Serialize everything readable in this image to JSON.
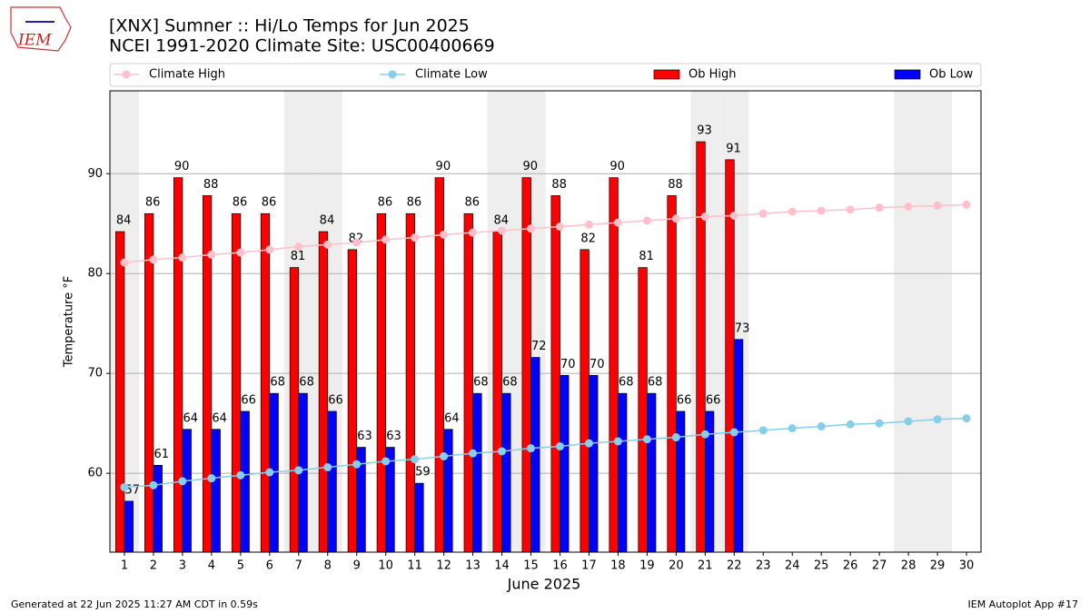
{
  "logo_text": "IEM",
  "footer_left": "Generated at 22 Jun 2025 11:27 AM CDT in 0.59s",
  "footer_right": "IEM Autoplot App #17",
  "chart_data": {
    "type": "bar",
    "title": "[XNX] Sumner :: Hi/Lo Temps for Jun 2025",
    "subtitle": "NCEI 1991-2020 Climate Site: USC00400669",
    "x_label": "June 2025",
    "y_label": "Temperature °F",
    "x": [
      1,
      2,
      3,
      4,
      5,
      6,
      7,
      8,
      9,
      10,
      11,
      12,
      13,
      14,
      15,
      16,
      17,
      18,
      19,
      20,
      21,
      22,
      23,
      24,
      25,
      26,
      27,
      28,
      29,
      30
    ],
    "xlim": [
      0.5,
      30.5
    ],
    "xticks": [
      1,
      2,
      3,
      4,
      5,
      6,
      7,
      8,
      9,
      10,
      11,
      12,
      13,
      14,
      15,
      16,
      17,
      18,
      19,
      20,
      21,
      22,
      23,
      24,
      25,
      26,
      27,
      28,
      29,
      30
    ],
    "ylim": [
      52.1,
      98.3
    ],
    "yticks": [
      60,
      70,
      80,
      90
    ],
    "grid": true,
    "shaded_x": [
      1,
      7,
      8,
      14,
      15,
      21,
      22,
      28,
      29
    ],
    "series": [
      {
        "name": "Climate High",
        "type": "line",
        "color": "#ffc0cb",
        "values": [
          81.1,
          81.4,
          81.6,
          81.9,
          82.1,
          82.4,
          82.7,
          82.9,
          83.1,
          83.4,
          83.6,
          83.9,
          84.1,
          84.3,
          84.5,
          84.7,
          84.9,
          85.1,
          85.3,
          85.5,
          85.7,
          85.8,
          86.0,
          86.2,
          86.3,
          86.4,
          86.6,
          86.7,
          86.8,
          86.9
        ]
      },
      {
        "name": "Climate Low",
        "type": "line",
        "color": "#87ceeb",
        "values": [
          58.6,
          58.8,
          59.2,
          59.5,
          59.8,
          60.1,
          60.3,
          60.6,
          60.9,
          61.2,
          61.4,
          61.7,
          62.0,
          62.2,
          62.5,
          62.7,
          63.0,
          63.2,
          63.4,
          63.6,
          63.9,
          64.1,
          64.3,
          64.5,
          64.7,
          64.9,
          65.0,
          65.2,
          65.4,
          65.5
        ]
      },
      {
        "name": "Ob High",
        "type": "bar",
        "color": "#ff0000",
        "values": [
          84.2,
          86.0,
          89.6,
          87.8,
          86.0,
          86.0,
          80.6,
          84.2,
          82.4,
          86.0,
          86.0,
          89.6,
          86.0,
          84.2,
          89.6,
          87.8,
          82.4,
          89.6,
          80.6,
          87.8,
          93.2,
          91.4,
          null,
          null,
          null,
          null,
          null,
          null,
          null,
          null
        ],
        "value_labels": [
          "84",
          "86",
          "90",
          "88",
          "86",
          "86",
          "81",
          "84",
          "82",
          "86",
          "86",
          "90",
          "86",
          "84",
          "90",
          "88",
          "82",
          "90",
          "81",
          "88",
          "93",
          "91",
          null,
          null,
          null,
          null,
          null,
          null,
          null,
          null
        ]
      },
      {
        "name": "Ob Low",
        "type": "bar",
        "color": "#0000ff",
        "values": [
          57.2,
          60.8,
          64.4,
          64.4,
          66.2,
          68.0,
          68.0,
          66.2,
          62.6,
          62.6,
          59.0,
          64.4,
          68.0,
          68.0,
          71.6,
          69.8,
          69.8,
          68.0,
          68.0,
          66.2,
          66.2,
          73.4,
          null,
          null,
          null,
          null,
          null,
          null,
          null,
          null
        ],
        "value_labels": [
          "57",
          "61",
          "64",
          "64",
          "66",
          "68",
          "68",
          "66",
          "63",
          "63",
          "59",
          "64",
          "68",
          "68",
          "72",
          "70",
          "70",
          "68",
          "68",
          "66",
          "66",
          "73",
          null,
          null,
          null,
          null,
          null,
          null,
          null,
          null
        ]
      }
    ]
  }
}
